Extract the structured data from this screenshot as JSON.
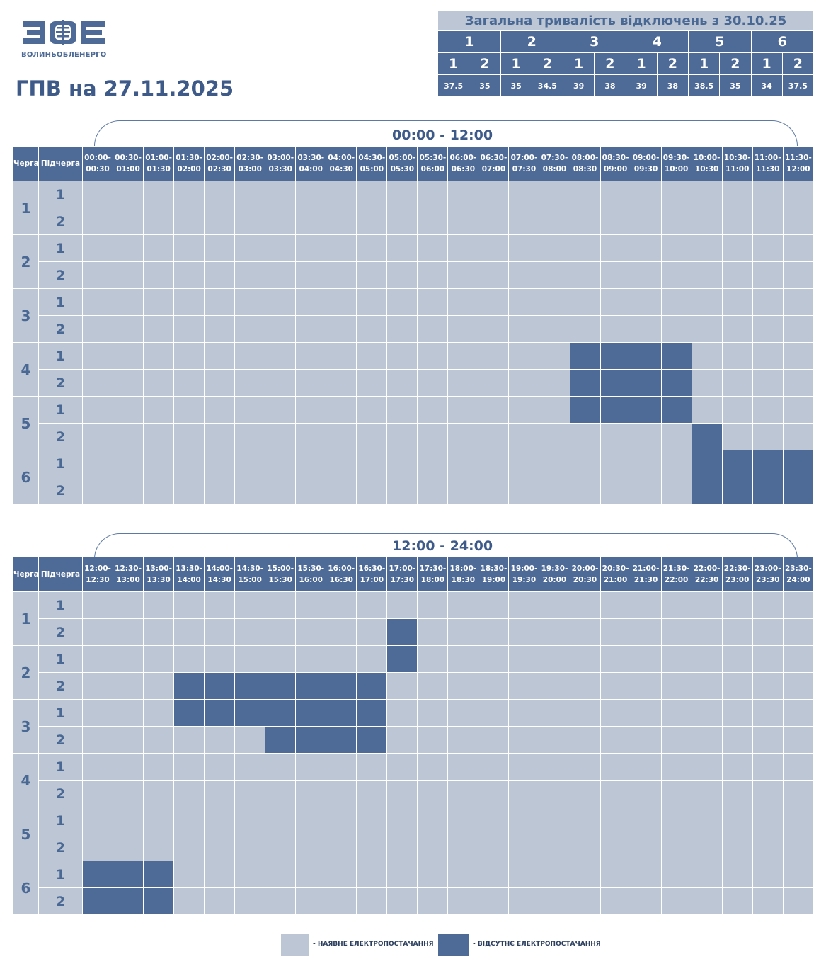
{
  "logo": {
    "alt": "ЗОЕ",
    "subtitle": "ВОЛИНЬОБЛЕНЕРГО"
  },
  "title": "ГПВ на 27.11.2025",
  "summary": {
    "title": "Загальна тривалість відключень з 30.10.25",
    "queues": [
      "1",
      "2",
      "3",
      "4",
      "5",
      "6"
    ],
    "subqueues": [
      "1",
      "2"
    ],
    "hours": [
      "37.5",
      "35",
      "35",
      "34.5",
      "39",
      "38",
      "39",
      "38",
      "38.5",
      "35",
      "34",
      "37.5"
    ]
  },
  "headers": {
    "queue": "Черга",
    "subqueue": "Підчерга"
  },
  "periods": [
    {
      "label": "00:00 - 12:00",
      "slots": [
        [
          "00:00-",
          "00:30"
        ],
        [
          "00:30-",
          "01:00"
        ],
        [
          "01:00-",
          "01:30"
        ],
        [
          "01:30-",
          "02:00"
        ],
        [
          "02:00-",
          "02:30"
        ],
        [
          "02:30-",
          "03:00"
        ],
        [
          "03:00-",
          "03:30"
        ],
        [
          "03:30-",
          "04:00"
        ],
        [
          "04:00-",
          "04:30"
        ],
        [
          "04:30-",
          "05:00"
        ],
        [
          "05:00-",
          "05:30"
        ],
        [
          "05:30-",
          "06:00"
        ],
        [
          "06:00-",
          "06:30"
        ],
        [
          "06:30-",
          "07:00"
        ],
        [
          "07:00-",
          "07:30"
        ],
        [
          "07:30-",
          "08:00"
        ],
        [
          "08:00-",
          "08:30"
        ],
        [
          "08:30-",
          "09:00"
        ],
        [
          "09:00-",
          "09:30"
        ],
        [
          "09:30-",
          "10:00"
        ],
        [
          "10:00-",
          "10:30"
        ],
        [
          "10:30-",
          "11:00"
        ],
        [
          "11:00-",
          "11:30"
        ],
        [
          "11:30-",
          "12:00"
        ]
      ],
      "outages": {
        "4.1": [
          16,
          17,
          18,
          19
        ],
        "4.2": [
          16,
          17,
          18,
          19
        ],
        "5.1": [
          16,
          17,
          18,
          19
        ],
        "5.2": [
          20
        ],
        "6.1": [
          20,
          21,
          22,
          23
        ],
        "6.2": [
          20,
          21,
          22,
          23
        ]
      }
    },
    {
      "label": "12:00 - 24:00",
      "slots": [
        [
          "12:00-",
          "12:30"
        ],
        [
          "12:30-",
          "13:00"
        ],
        [
          "13:00-",
          "13:30"
        ],
        [
          "13:30-",
          "14:00"
        ],
        [
          "14:00-",
          "14:30"
        ],
        [
          "14:30-",
          "15:00"
        ],
        [
          "15:00-",
          "15:30"
        ],
        [
          "15:30-",
          "16:00"
        ],
        [
          "16:00-",
          "16:30"
        ],
        [
          "16:30-",
          "17:00"
        ],
        [
          "17:00-",
          "17:30"
        ],
        [
          "17:30-",
          "18:00"
        ],
        [
          "18:00-",
          "18:30"
        ],
        [
          "18:30-",
          "19:00"
        ],
        [
          "19:00-",
          "19:30"
        ],
        [
          "19:30-",
          "20:00"
        ],
        [
          "20:00-",
          "20:30"
        ],
        [
          "20:30-",
          "21:00"
        ],
        [
          "21:00-",
          "21:30"
        ],
        [
          "21:30-",
          "22:00"
        ],
        [
          "22:00-",
          "22:30"
        ],
        [
          "22:30-",
          "23:00"
        ],
        [
          "23:00-",
          "23:30"
        ],
        [
          "23:30-",
          "24:00"
        ]
      ],
      "outages": {
        "1.2": [
          10
        ],
        "2.1": [
          10
        ],
        "2.2": [
          3,
          4,
          5,
          6,
          7,
          8,
          9
        ],
        "3.1": [
          3,
          4,
          5,
          6,
          7,
          8,
          9
        ],
        "3.2": [
          6,
          7,
          8,
          9
        ],
        "6.1": [
          0,
          1,
          2
        ],
        "6.2": [
          0,
          1,
          2
        ]
      }
    }
  ],
  "legend": {
    "available": "- НАЯВНЕ ЕЛЕКТРОПОСТАЧАННЯ",
    "unavailable": "- ВІДСУТНЄ ЕЛЕКТРОПОСТАЧАННЯ"
  },
  "colors": {
    "on": "#bcc6d4",
    "off": "#4e6a96"
  }
}
